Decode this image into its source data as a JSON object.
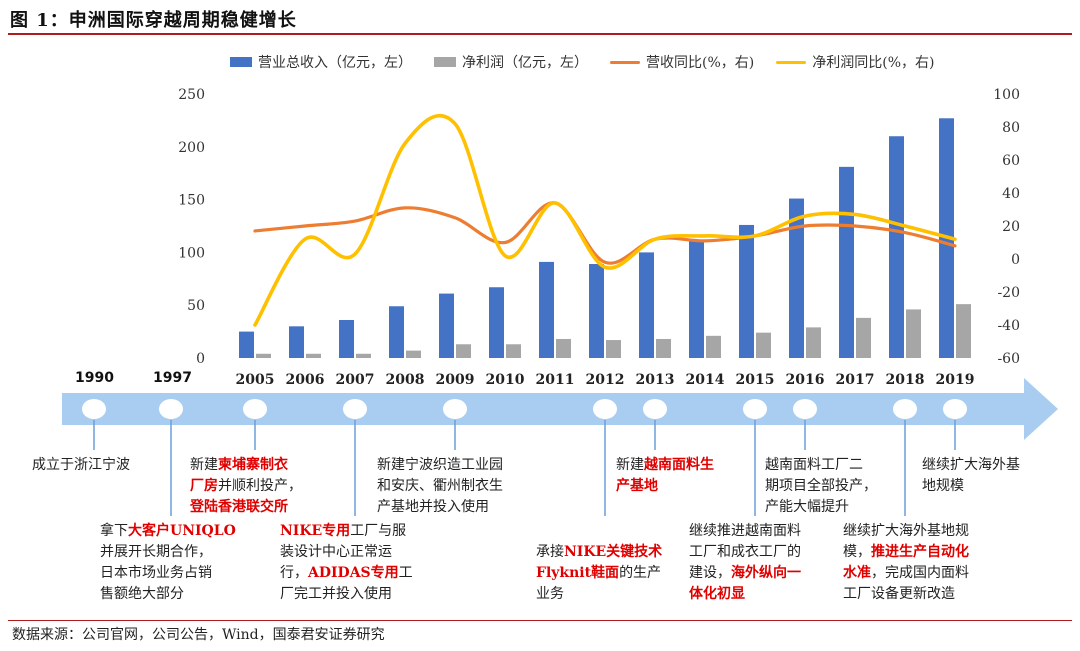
{
  "title": "图 1：申洲国际穿越周期稳健增长",
  "source": "数据来源：公司官网，公司公告，Wind，国泰君安证券研究",
  "colors": {
    "revenue": "#4472c4",
    "profit": "#a6a6a6",
    "revenue_yoy": "#ed7d31",
    "profit_yoy": "#ffc000",
    "timeline": "#a9cdf0",
    "title_rule": "#b01c1c",
    "highlight": "#e00000"
  },
  "chart_data": {
    "type": "bar",
    "categories": [
      "2005",
      "2006",
      "2007",
      "2008",
      "2009",
      "2010",
      "2011",
      "2012",
      "2013",
      "2014",
      "2015",
      "2016",
      "2017",
      "2018",
      "2019"
    ],
    "series": [
      {
        "name": "营业总收入（亿元，左）",
        "type": "bar",
        "axis": "left",
        "values": [
          25,
          30,
          36,
          49,
          61,
          67,
          91,
          89,
          100,
          112,
          126,
          151,
          181,
          210,
          227
        ]
      },
      {
        "name": "净利润（亿元，左）",
        "type": "bar",
        "axis": "left",
        "values": [
          4,
          4,
          4,
          7,
          13,
          13,
          18,
          17,
          18,
          21,
          24,
          29,
          38,
          46,
          51
        ]
      },
      {
        "name": "营收同比(%，右)",
        "type": "line",
        "axis": "right",
        "values": [
          17,
          20,
          23,
          31,
          25,
          10,
          34,
          -2,
          12,
          11,
          14,
          20,
          20,
          16,
          8
        ]
      },
      {
        "name": "净利润同比(%，右)",
        "type": "line",
        "axis": "right",
        "values": [
          -40,
          12,
          3,
          70,
          82,
          2,
          34,
          -5,
          12,
          14,
          14,
          26,
          27,
          20,
          12
        ]
      }
    ],
    "ylim_left": [
      0,
      250
    ],
    "ylim_right": [
      -60,
      100
    ],
    "yticks_left": [
      0,
      50,
      100,
      150,
      200,
      250
    ],
    "yticks_right": [
      -60,
      -40,
      -20,
      0,
      20,
      40,
      60,
      80,
      100
    ],
    "legend_position": "top"
  },
  "timeline": {
    "years_above": [
      "1990",
      "1997"
    ],
    "milestones": [
      {
        "parts": [
          {
            "t": "成立于浙江宁波",
            "h": false
          }
        ]
      },
      {
        "parts": [
          {
            "t": "拿下",
            "h": false
          },
          {
            "t": "大客户UNIQLO",
            "h": true
          },
          {
            "t": "\n并展开长期合作，\n日本市场业务占销\n售额绝大部分",
            "h": false
          }
        ]
      },
      {
        "parts": [
          {
            "t": "新建",
            "h": false
          },
          {
            "t": "柬埔寨制衣\n厂房",
            "h": true
          },
          {
            "t": "并顺利投产，\n",
            "h": false
          },
          {
            "t": "登陆香港联交所",
            "h": true
          }
        ]
      },
      {
        "parts": [
          {
            "t": "NIKE专用",
            "h": true
          },
          {
            "t": "工厂与服\n装设计中心正常运\n行，",
            "h": false
          },
          {
            "t": "ADIDAS专用",
            "h": true
          },
          {
            "t": "工\n厂完工并投入使用",
            "h": false
          }
        ]
      },
      {
        "parts": [
          {
            "t": "新建宁波织造工业园\n和安庆、衢州制衣生\n产基地并投入使用",
            "h": false
          }
        ]
      },
      {
        "parts": [
          {
            "t": "承接",
            "h": false
          },
          {
            "t": "NIKE关键技术\nFlyknit鞋面",
            "h": true
          },
          {
            "t": "的生产\n业务",
            "h": false
          }
        ]
      },
      {
        "parts": [
          {
            "t": "新建",
            "h": false
          },
          {
            "t": "越南面料生\n产基地",
            "h": true
          }
        ]
      },
      {
        "parts": [
          {
            "t": "继续推进越南面料\n工厂和成衣工厂的\n建设，",
            "h": false
          },
          {
            "t": "海外纵向一\n体化初显",
            "h": true
          }
        ]
      },
      {
        "parts": [
          {
            "t": "越南面料工厂二\n期项目全部投产，\n产能大幅提升",
            "h": false
          }
        ]
      },
      {
        "parts": [
          {
            "t": "继续扩大海外基地规\n模，",
            "h": false
          },
          {
            "t": "推进生产自动化\n水准",
            "h": true
          },
          {
            "t": "，完成国内面料\n工厂设备更新改造",
            "h": false
          }
        ]
      },
      {
        "parts": [
          {
            "t": "继续扩大海外基\n地规模",
            "h": false
          }
        ]
      }
    ]
  }
}
